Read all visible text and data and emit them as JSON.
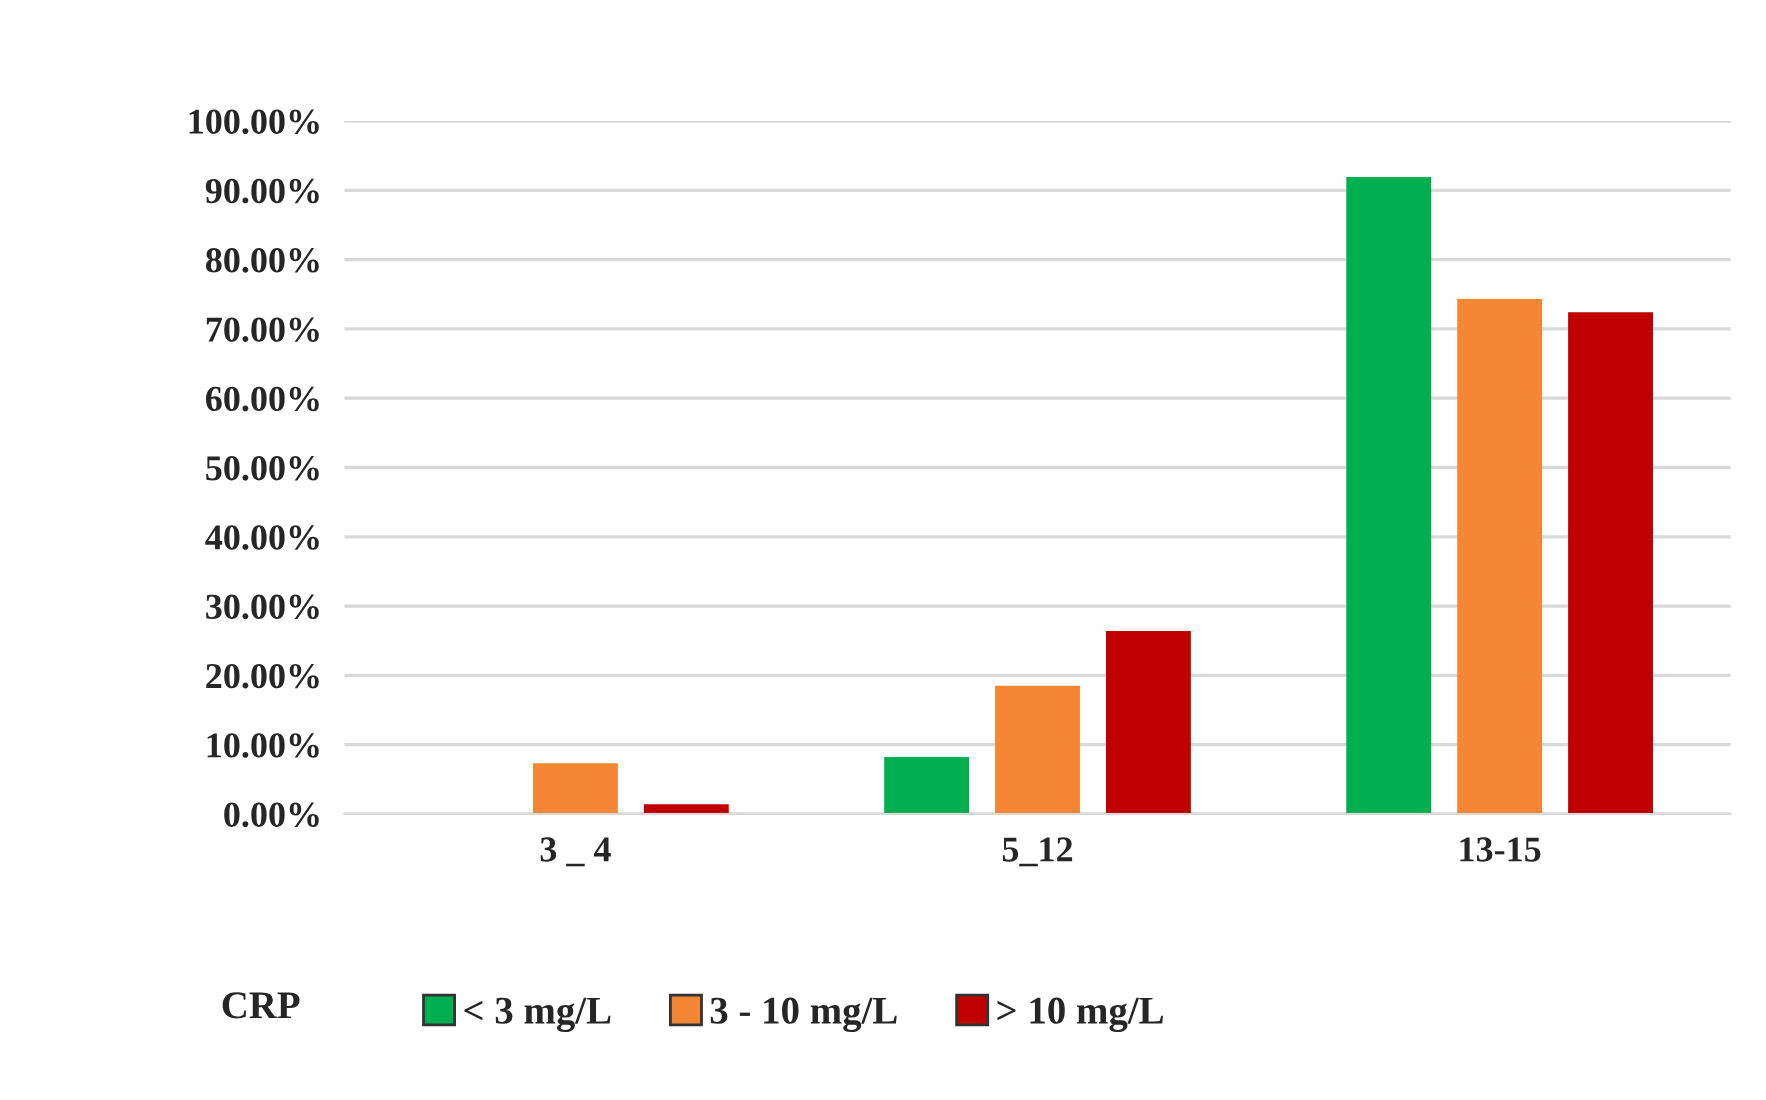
{
  "chart_data": {
    "type": "bar",
    "categories": [
      "3 _ 4",
      "5_12",
      "13-15"
    ],
    "series": [
      {
        "name": "< 3 mg/L",
        "color": "#00b050",
        "values": [
          0,
          8.1,
          91.8
        ]
      },
      {
        "name": "3 - 10 mg/L",
        "color": "#f58634",
        "values": [
          7.2,
          18.4,
          74.2
        ]
      },
      {
        "name": "> 10 mg/L",
        "color": "#c00000",
        "values": [
          1.3,
          26.3,
          72.3
        ]
      }
    ],
    "legend_title": "CRP",
    "legend": "bottom",
    "grid": "y",
    "ylim": [
      0,
      100
    ],
    "yticks": [
      {
        "value": 0,
        "label": "0.00%"
      },
      {
        "value": 10,
        "label": "10.00%"
      },
      {
        "value": 20,
        "label": "20.00%"
      },
      {
        "value": 30,
        "label": "30.00%"
      },
      {
        "value": 40,
        "label": "40.00%"
      },
      {
        "value": 50,
        "label": "50.00%"
      },
      {
        "value": 60,
        "label": "60.00%"
      },
      {
        "value": 70,
        "label": "70.00%"
      },
      {
        "value": 80,
        "label": "80.00%"
      },
      {
        "value": 90,
        "label": "90.00%"
      },
      {
        "value": 100,
        "label": "100.00%"
      }
    ]
  }
}
